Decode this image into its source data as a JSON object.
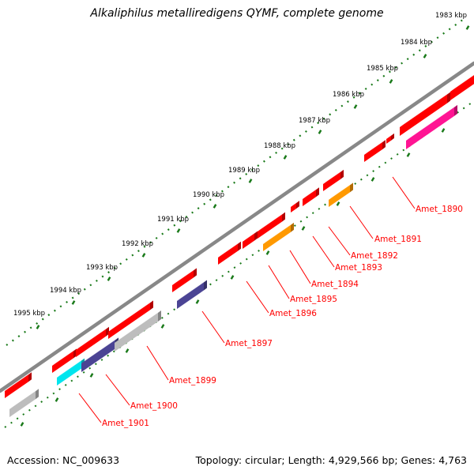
{
  "title": "Alkaliphilus metalliredigens QYMF, complete genome",
  "footer": {
    "accession": "Accession: NC_009633",
    "summary": "Topology: circular; Length: 4,929,566 bp; Genes: 4,763"
  },
  "scale_ticks": [
    "1983 kbp",
    "1984 kbp",
    "1985 kbp",
    "1986 kbp",
    "1987 kbp",
    "1988 kbp",
    "1989 kbp",
    "1990 kbp",
    "1991 kbp",
    "1992 kbp",
    "1993 kbp",
    "1994 kbp",
    "1995 kbp"
  ],
  "gene_labels": [
    "Amet_1890",
    "Amet_1891",
    "Amet_1892",
    "Amet_1893",
    "Amet_1894",
    "Amet_1895",
    "Amet_1896",
    "Amet_1897",
    "Amet_1899",
    "Amet_1900",
    "Amet_1901"
  ],
  "colors": {
    "backbone": "#888888",
    "forward_gene": "#ff0000",
    "cog_magenta": "#ff1493",
    "cog_orange": "#ff9900",
    "cog_navy": "#4b4494",
    "cog_gray": "#bdbdbd",
    "cog_cyan": "#00e5ee",
    "ruler": "#1a7a1a",
    "label": "#ff0000"
  }
}
